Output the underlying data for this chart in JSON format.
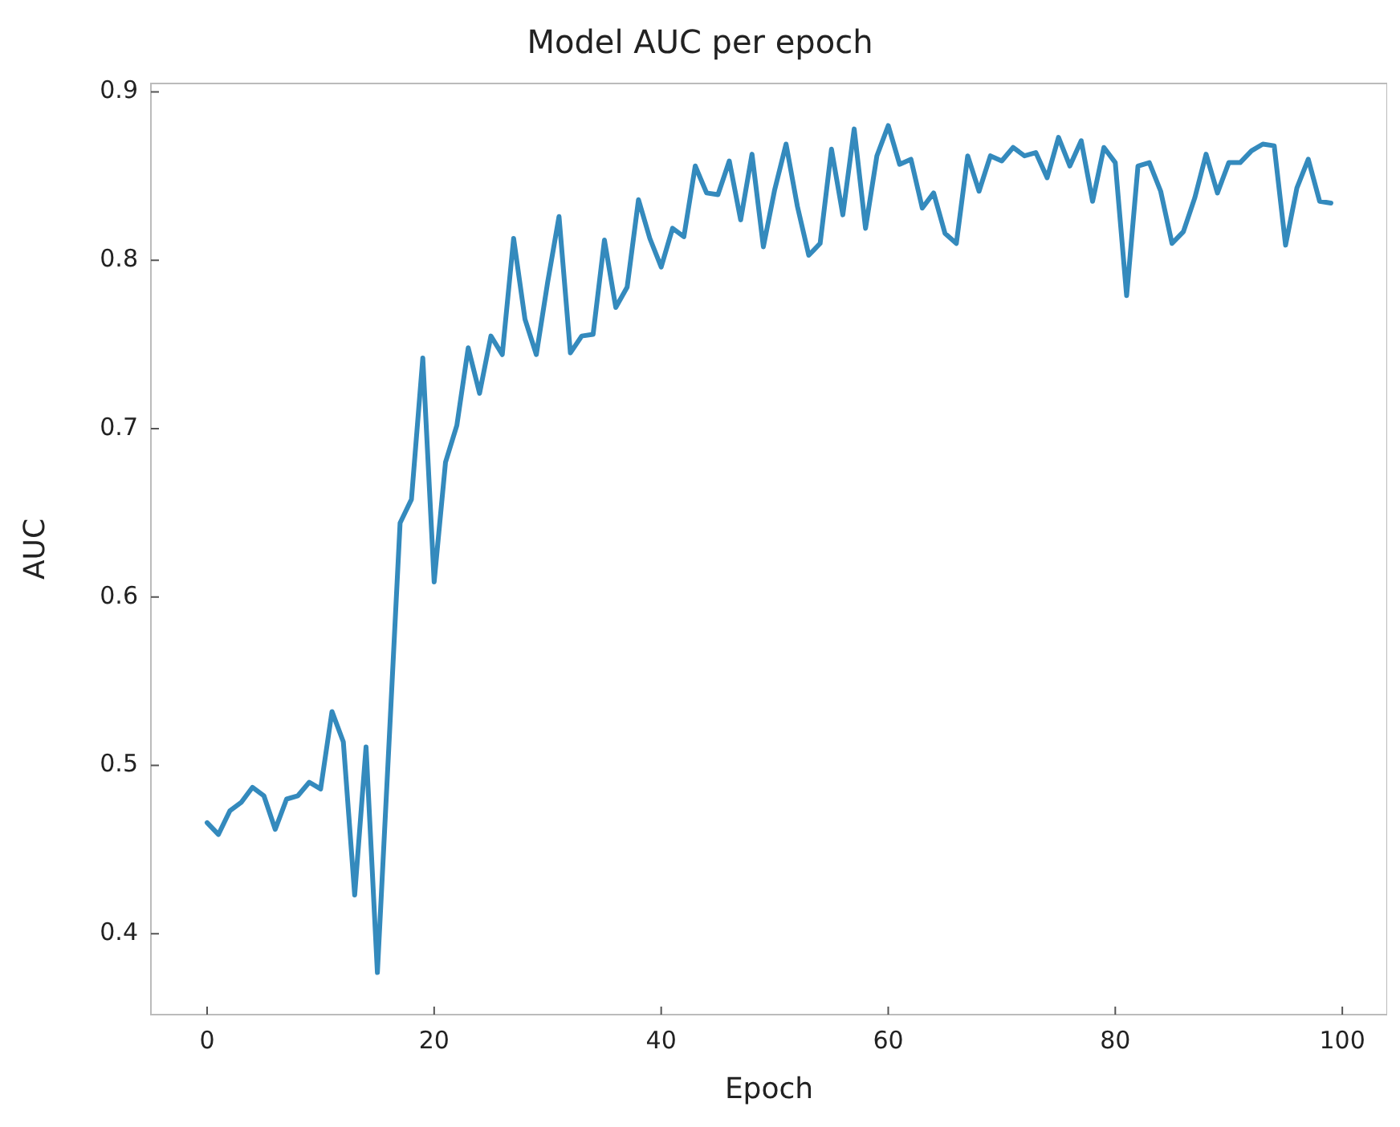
{
  "chart_data": {
    "type": "line",
    "title": "Model AUC per epoch",
    "xlabel": "Epoch",
    "ylabel": "AUC",
    "x": [
      0,
      1,
      2,
      3,
      4,
      5,
      6,
      7,
      8,
      9,
      10,
      11,
      12,
      13,
      14,
      15,
      16,
      17,
      18,
      19,
      20,
      21,
      22,
      23,
      24,
      25,
      26,
      27,
      28,
      29,
      30,
      31,
      32,
      33,
      34,
      35,
      36,
      37,
      38,
      39,
      40,
      41,
      42,
      43,
      44,
      45,
      46,
      47,
      48,
      49,
      50,
      51,
      52,
      53,
      54,
      55,
      56,
      57,
      58,
      59,
      60,
      61,
      62,
      63,
      64,
      65,
      66,
      67,
      68,
      69,
      70,
      71,
      72,
      73,
      74,
      75,
      76,
      77,
      78,
      79,
      80,
      81,
      82,
      83,
      84,
      85,
      86,
      87,
      88,
      89,
      90,
      91,
      92,
      93,
      94,
      95,
      96,
      97,
      98,
      99
    ],
    "series": [
      {
        "color": "#348abd",
        "values": [
          0.466,
          0.459,
          0.473,
          0.478,
          0.487,
          0.482,
          0.462,
          0.48,
          0.482,
          0.49,
          0.486,
          0.532,
          0.514,
          0.423,
          0.511,
          0.377,
          0.51,
          0.644,
          0.658,
          0.742,
          0.609,
          0.68,
          0.702,
          0.748,
          0.721,
          0.755,
          0.744,
          0.813,
          0.765,
          0.744,
          0.787,
          0.826,
          0.745,
          0.755,
          0.756,
          0.812,
          0.772,
          0.784,
          0.836,
          0.813,
          0.796,
          0.819,
          0.814,
          0.856,
          0.84,
          0.839,
          0.859,
          0.824,
          0.863,
          0.808,
          0.842,
          0.869,
          0.832,
          0.803,
          0.81,
          0.866,
          0.827,
          0.878,
          0.819,
          0.862,
          0.88,
          0.857,
          0.86,
          0.831,
          0.84,
          0.816,
          0.81,
          0.862,
          0.841,
          0.862,
          0.859,
          0.867,
          0.862,
          0.864,
          0.849,
          0.873,
          0.856,
          0.871,
          0.835,
          0.867,
          0.858,
          0.779,
          0.856,
          0.858,
          0.841,
          0.81,
          0.817,
          0.837,
          0.863,
          0.84,
          0.858,
          0.858,
          0.865,
          0.869,
          0.868,
          0.809,
          0.843,
          0.86,
          0.835,
          0.834
        ]
      }
    ],
    "xlim": [
      -4.95,
      103.95
    ],
    "xticks": [
      0,
      20,
      40,
      60,
      80,
      100
    ],
    "ylim": [
      0.352,
      0.905
    ],
    "yticks": [
      0.4,
      0.5,
      0.6,
      0.7,
      0.8,
      0.9
    ],
    "grid": false,
    "legend": false,
    "marker": "none",
    "line_style": "solid"
  }
}
